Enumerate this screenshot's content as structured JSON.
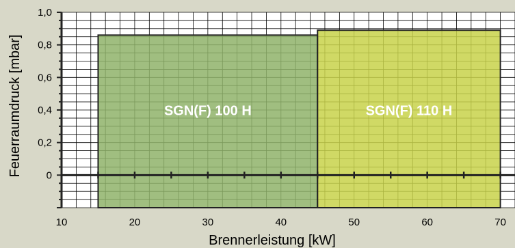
{
  "chart_data": {
    "type": "bar",
    "xlabel": "Brennerleistung [kW]",
    "ylabel": "Feuerraumdruck [mbar]",
    "xlim": [
      10,
      72
    ],
    "ylim": [
      -0.2,
      1.0
    ],
    "x_ticks": [
      10,
      20,
      30,
      40,
      50,
      60,
      70
    ],
    "x_tick_labels": [
      "10",
      "20",
      "30",
      "40",
      "50",
      "60",
      "70"
    ],
    "y_ticks": [
      0,
      0.2,
      0.4,
      0.6,
      0.8,
      1.0
    ],
    "y_tick_labels": [
      "0",
      "0,2",
      "0,4",
      "0,6",
      "0,8",
      "1,0"
    ],
    "grid": true,
    "series": [
      {
        "name": "SGN(F) 100 H",
        "x_min": 15,
        "x_max": 45,
        "y_min": -0.2,
        "y_max": 0.86,
        "color": "#8fb36a"
      },
      {
        "name": "SGN(F) 110 H",
        "x_min": 45,
        "x_max": 70,
        "y_min": -0.2,
        "y_max": 0.89,
        "color": "#c8d24a"
      }
    ],
    "colors": {
      "background": "#d8d8c8",
      "plot_background": "#ffffff",
      "grid": "#000000",
      "label_text": "#ffffff",
      "axis_text": "#000000"
    }
  }
}
